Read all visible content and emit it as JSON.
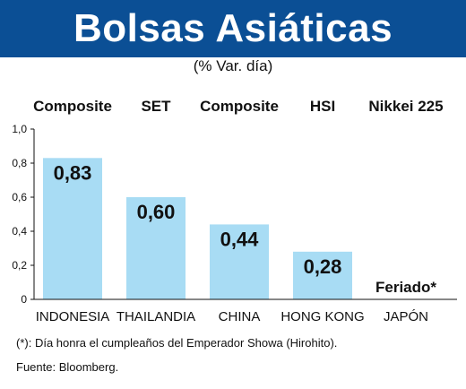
{
  "header": {
    "title": "Bolsas Asiáticas",
    "subtitle": "(% Var. día)"
  },
  "colors": {
    "title_bar": "#0b4f95",
    "bar_fill": "#a8dcf4",
    "text": "#111111"
  },
  "chart_data": {
    "type": "bar",
    "title": "Bolsas Asiáticas",
    "subtitle": "(% Var. día)",
    "categories": [
      "INDONESIA",
      "THAILANDIA",
      "CHINA",
      "HONG KONG",
      "JAPÓN"
    ],
    "index_names": [
      "Composite",
      "SET",
      "Composite",
      "HSI",
      "Nikkei 225"
    ],
    "values": [
      0.83,
      0.6,
      0.44,
      0.28,
      null
    ],
    "value_labels": [
      "0,83",
      "0,60",
      "0,44",
      "0,28",
      ""
    ],
    "notes": [
      "",
      "",
      "",
      "",
      "Feriado*"
    ],
    "yticks": [
      0,
      0.2,
      0.4,
      0.6,
      0.8,
      1.0
    ],
    "ytick_labels": [
      "0",
      "0,2",
      "0,4",
      "0,6",
      "0,8",
      "1,0"
    ],
    "ylim": [
      0,
      1.0
    ],
    "grid": false,
    "legend": "none"
  },
  "footnote": "(*): Día honra el cumpleaños del Emperador Showa (Hirohito).",
  "source": "Fuente: Bloomberg."
}
